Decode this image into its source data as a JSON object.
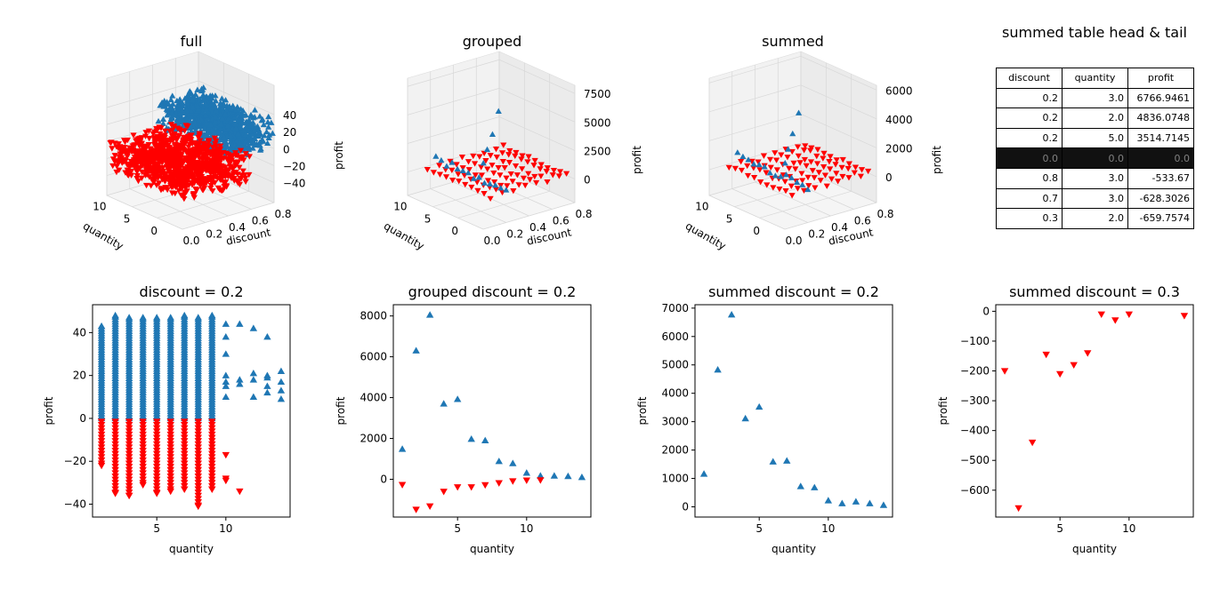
{
  "colors": {
    "positive": "#1f77b4",
    "negative": "#ff0000"
  },
  "chart_data": [
    {
      "type": "scatter3d",
      "title": "full",
      "xlabel": "discount",
      "ylabel": "quantity",
      "zlabel": "profit",
      "xlim": [
        0.0,
        0.8
      ],
      "ylim": [
        0,
        14
      ],
      "zlim": [
        -45,
        45
      ],
      "xticks": [
        "0.8",
        "0.6",
        "0.4",
        "0.2",
        "0.0"
      ],
      "yticks": [
        "10",
        "5",
        "0"
      ],
      "zticks": [
        "40",
        "20",
        "0",
        "−20",
        "−40"
      ],
      "markers": {
        "positive": "triangle-up",
        "negative": "triangle-down"
      }
    },
    {
      "type": "scatter3d",
      "title": "grouped",
      "xlabel": "discount",
      "ylabel": "quantity",
      "zlabel": "profit",
      "xlim": [
        0.0,
        0.8
      ],
      "ylim": [
        0,
        14
      ],
      "zlim": [
        -1500,
        8000
      ],
      "xticks": [
        "0.8",
        "0.6",
        "0.4",
        "0.2",
        "0.0"
      ],
      "yticks": [
        "10",
        "5",
        "0"
      ],
      "zticks": [
        "7500",
        "5000",
        "2500",
        "0"
      ]
    },
    {
      "type": "scatter3d",
      "title": "summed",
      "xlabel": "discount",
      "ylabel": "quantity",
      "zlabel": "profit",
      "xlim": [
        0.0,
        0.8
      ],
      "ylim": [
        0,
        14
      ],
      "zlim": [
        -700,
        6800
      ],
      "xticks": [
        "0.8",
        "0.6",
        "0.4",
        "0.2",
        "0.0"
      ],
      "yticks": [
        "10",
        "5",
        "0"
      ],
      "zticks": [
        "6000",
        "4000",
        "2000",
        "0"
      ]
    },
    {
      "type": "table",
      "title": "summed table head & tail",
      "columns": [
        "discount",
        "quantity",
        "profit"
      ],
      "rows": [
        [
          "0.2",
          "3.0",
          "6766.9461"
        ],
        [
          "0.2",
          "2.0",
          "4836.0748"
        ],
        [
          "0.2",
          "5.0",
          "3514.7145"
        ],
        [
          "0.0",
          "0.0",
          "0.0"
        ],
        [
          "0.8",
          "3.0",
          "-533.67"
        ],
        [
          "0.7",
          "3.0",
          "-628.3026"
        ],
        [
          "0.3",
          "2.0",
          "-659.7574"
        ]
      ]
    },
    {
      "type": "scatter",
      "title": "discount = 0.2",
      "xlabel": "quantity",
      "ylabel": "profit",
      "xlim": [
        0.35,
        14.65
      ],
      "ylim": [
        -46,
        53
      ],
      "xticks": [
        5,
        10
      ],
      "yticks": [
        -40,
        -20,
        0,
        20,
        40
      ],
      "columns": [
        {
          "x": 1,
          "pos_max": 43,
          "neg_min": -22
        },
        {
          "x": 2,
          "pos_max": 48,
          "neg_min": -35
        },
        {
          "x": 3,
          "pos_max": 47,
          "neg_min": -36
        },
        {
          "x": 4,
          "pos_max": 47,
          "neg_min": -31
        },
        {
          "x": 5,
          "pos_max": 47,
          "neg_min": -35
        },
        {
          "x": 6,
          "pos_max": 47,
          "neg_min": -34
        },
        {
          "x": 7,
          "pos_max": 48,
          "neg_min": -33
        },
        {
          "x": 8,
          "pos_max": 47,
          "neg_min": -41
        },
        {
          "x": 9,
          "pos_max": 48,
          "neg_min": -33
        }
      ],
      "extra_points": [
        [
          10,
          44,
          "pos"
        ],
        [
          10,
          38,
          "pos"
        ],
        [
          10,
          30,
          "pos"
        ],
        [
          10,
          20,
          "pos"
        ],
        [
          10,
          17,
          "pos"
        ],
        [
          10,
          15,
          "pos"
        ],
        [
          10,
          10,
          "pos"
        ],
        [
          10,
          -17,
          "neg"
        ],
        [
          10,
          -29,
          "neg"
        ],
        [
          10,
          -28,
          "neg"
        ],
        [
          11,
          44,
          "pos"
        ],
        [
          11,
          18,
          "pos"
        ],
        [
          11,
          16,
          "pos"
        ],
        [
          11,
          -34,
          "neg"
        ],
        [
          12,
          42,
          "pos"
        ],
        [
          12,
          21,
          "pos"
        ],
        [
          12,
          18,
          "pos"
        ],
        [
          12,
          10,
          "pos"
        ],
        [
          13,
          38,
          "pos"
        ],
        [
          13,
          20,
          "pos"
        ],
        [
          13,
          19,
          "pos"
        ],
        [
          13,
          15,
          "pos"
        ],
        [
          13,
          12,
          "pos"
        ],
        [
          14,
          22,
          "pos"
        ],
        [
          14,
          17,
          "pos"
        ],
        [
          14,
          13,
          "pos"
        ],
        [
          14,
          9,
          "pos"
        ]
      ]
    },
    {
      "type": "scatter",
      "title": "grouped discount = 0.2",
      "xlabel": "quantity",
      "ylabel": "profit",
      "xlim": [
        0.35,
        14.65
      ],
      "ylim": [
        -1850,
        8550
      ],
      "xticks": [
        5,
        10
      ],
      "yticks": [
        0,
        2000,
        4000,
        6000,
        8000
      ],
      "points": [
        [
          1,
          1480,
          "pos"
        ],
        [
          2,
          6300,
          "pos"
        ],
        [
          3,
          8050,
          "pos"
        ],
        [
          4,
          3700,
          "pos"
        ],
        [
          5,
          3920,
          "pos"
        ],
        [
          6,
          1970,
          "pos"
        ],
        [
          7,
          1900,
          "pos"
        ],
        [
          8,
          880,
          "pos"
        ],
        [
          9,
          780,
          "pos"
        ],
        [
          10,
          310,
          "pos"
        ],
        [
          11,
          170,
          "pos"
        ],
        [
          12,
          170,
          "pos"
        ],
        [
          13,
          150,
          "pos"
        ],
        [
          14,
          100,
          "pos"
        ],
        [
          1,
          -270,
          "neg"
        ],
        [
          2,
          -1480,
          "neg"
        ],
        [
          3,
          -1320,
          "neg"
        ],
        [
          4,
          -600,
          "neg"
        ],
        [
          5,
          -380,
          "neg"
        ],
        [
          6,
          -380,
          "neg"
        ],
        [
          7,
          -280,
          "neg"
        ],
        [
          8,
          -180,
          "neg"
        ],
        [
          9,
          -90,
          "neg"
        ],
        [
          10,
          -50,
          "neg"
        ],
        [
          11,
          -40,
          "neg"
        ]
      ]
    },
    {
      "type": "scatter",
      "title": "summed discount = 0.2",
      "xlabel": "quantity",
      "ylabel": "profit",
      "xlim": [
        0.35,
        14.65
      ],
      "ylim": [
        -360,
        7120
      ],
      "xticks": [
        5,
        10
      ],
      "yticks": [
        0,
        1000,
        2000,
        3000,
        4000,
        5000,
        6000,
        7000
      ],
      "points": [
        [
          1,
          1160,
          "pos"
        ],
        [
          2,
          4830,
          "pos"
        ],
        [
          3,
          6770,
          "pos"
        ],
        [
          4,
          3110,
          "pos"
        ],
        [
          5,
          3520,
          "pos"
        ],
        [
          6,
          1590,
          "pos"
        ],
        [
          7,
          1620,
          "pos"
        ],
        [
          8,
          720,
          "pos"
        ],
        [
          9,
          680,
          "pos"
        ],
        [
          10,
          220,
          "pos"
        ],
        [
          11,
          120,
          "pos"
        ],
        [
          12,
          180,
          "pos"
        ],
        [
          13,
          120,
          "pos"
        ],
        [
          14,
          60,
          "pos"
        ]
      ]
    },
    {
      "type": "scatter",
      "title": "summed discount = 0.3",
      "xlabel": "quantity",
      "ylabel": "profit",
      "xlim": [
        0.35,
        14.65
      ],
      "ylim": [
        -690,
        22
      ],
      "xticks": [
        5,
        10
      ],
      "yticks": [
        -600,
        -500,
        -400,
        -300,
        -200,
        -100,
        0
      ],
      "points": [
        [
          1,
          -200,
          "neg"
        ],
        [
          2,
          -660,
          "neg"
        ],
        [
          3,
          -440,
          "neg"
        ],
        [
          4,
          -145,
          "neg"
        ],
        [
          5,
          -210,
          "neg"
        ],
        [
          6,
          -180,
          "neg"
        ],
        [
          7,
          -140,
          "neg"
        ],
        [
          8,
          -10,
          "neg"
        ],
        [
          9,
          -30,
          "neg"
        ],
        [
          10,
          -10,
          "neg"
        ],
        [
          14,
          -15,
          "neg"
        ]
      ]
    }
  ]
}
